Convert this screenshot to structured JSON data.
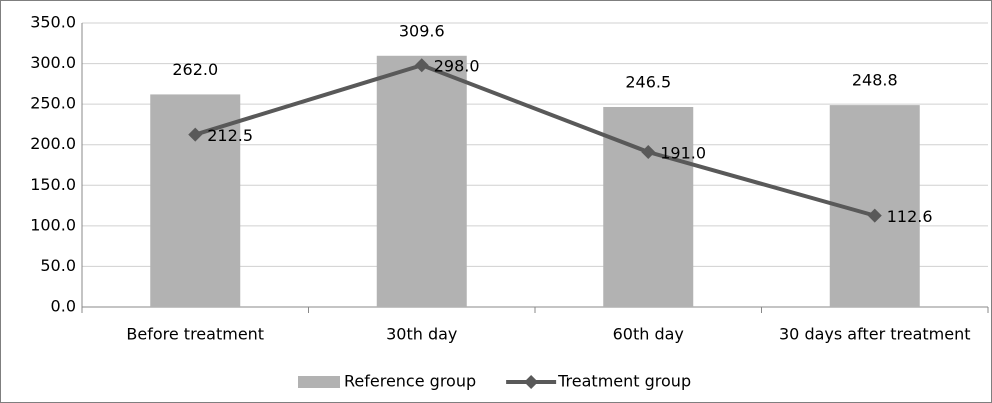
{
  "chart_data": {
    "type": "bar",
    "categories": [
      "Before treatment",
      "30th day",
      "60th day",
      "30 days after treatment"
    ],
    "series": [
      {
        "name": "Reference group",
        "type": "bar",
        "color": "#b2b2b2",
        "values": [
          262.0,
          309.6,
          246.5,
          248.8
        ],
        "value_labels": [
          "262.0",
          "309.6",
          "246.5",
          "248.8"
        ]
      },
      {
        "name": "Treatment group",
        "type": "line",
        "color": "#595959",
        "values": [
          212.5,
          298.0,
          191.0,
          112.6
        ],
        "value_labels": [
          "212.5",
          "298.0",
          "191.0",
          "112.6"
        ]
      }
    ],
    "ylim": [
      0,
      350
    ],
    "yticks": [
      {
        "value": 0,
        "label": "0.0"
      },
      {
        "value": 50,
        "label": "50.0"
      },
      {
        "value": 100,
        "label": "100.0"
      },
      {
        "value": 150,
        "label": "150.0"
      },
      {
        "value": 200,
        "label": "200.0"
      },
      {
        "value": 250,
        "label": "250.0"
      },
      {
        "value": 300,
        "label": "300.0"
      },
      {
        "value": 350,
        "label": "350.0"
      }
    ],
    "grid": true,
    "legend": "bottom"
  }
}
